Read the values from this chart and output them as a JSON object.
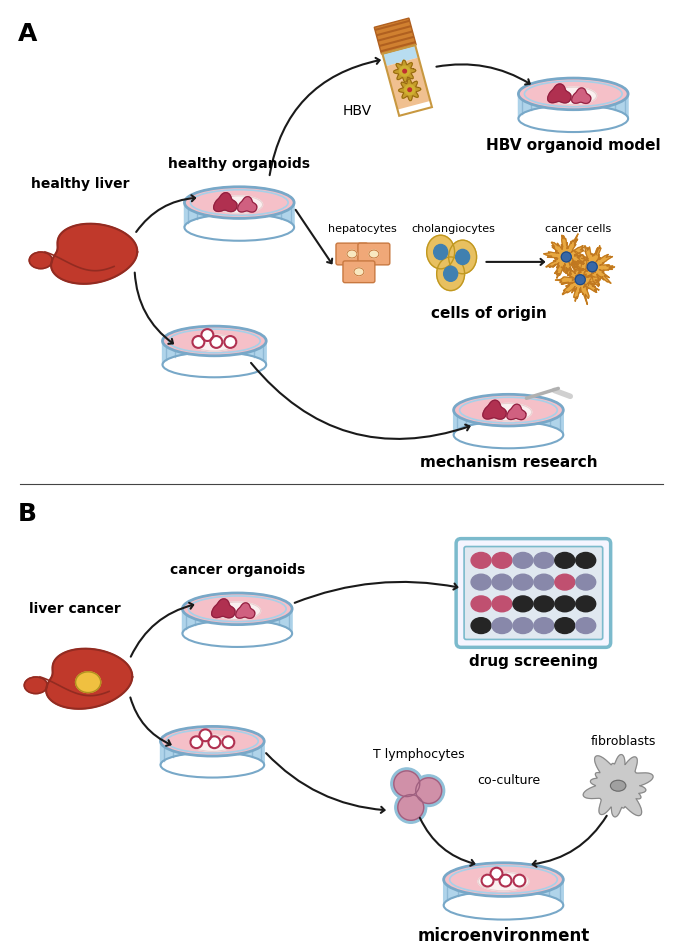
{
  "bg_color": "#ffffff",
  "label_A": "A",
  "label_B": "B",
  "text_healthy_liver": "healthy liver",
  "text_liver_cancer": "liver cancer",
  "text_healthy_organoids": "healthy organoids",
  "text_cancer_organoids": "cancer organoids",
  "text_HBV_model": "HBV organoid model",
  "text_cells_origin": "cells of origin",
  "text_mechanism": "mechanism research",
  "text_drug_screening": "drug screening",
  "text_microenvironment": "microenvironment",
  "text_HBV": "HBV",
  "text_hepatocytes": "hepatocytes",
  "text_cholangiocytes": "cholangiocytes",
  "text_cancer_cells": "cancer cells",
  "text_T_lymphocytes": "T lymphocytes",
  "text_fibroblasts": "fibroblasts",
  "text_co_culture": "co-culture",
  "liver_fill": "#C0392B",
  "liver_edge": "#922B21",
  "liver_lobe_fill": "#C0392B",
  "liver_tumor": "#F0C040",
  "dish_pink": "#F5C0C8",
  "dish_rim_blue": "#A8D0E8",
  "dish_rim_dark": "#78A8C8",
  "dish_inner_white": "#FAF0F0",
  "blob_dark": "#B03050",
  "blob_light": "#D06080",
  "blob_tiny": "#C84060",
  "cell_salmon": "#F0A878",
  "cell_outline": "#C87840",
  "chol_yellow": "#E8C060",
  "chol_edge": "#C09820",
  "chol_blue": "#4080B0",
  "cancer_orange": "#E8A840",
  "cancer_edge": "#C07820",
  "cancer_blue": "#3868A8",
  "lympho_pink": "#D090A8",
  "lympho_edge": "#A06080",
  "lympho_blue": "#90C0D8",
  "fibro_gray": "#B0B0B0",
  "fibro_edge": "#808080",
  "fibro_nuc": "#909090",
  "tube_body": "#E8C080",
  "tube_rim": "#C89840",
  "tube_cap_fill": "#D08030",
  "tube_cap_stripe": "#B06020",
  "tube_top": "#87CEEB",
  "virus_outer": "#C09820",
  "virus_inner": "#D0B030",
  "plate_bg": "#F5F5FF",
  "plate_border": "#7BBACC",
  "plate_inner": "#E0E8F0",
  "plate_pink": "#C05070",
  "plate_purple": "#8888AA",
  "plate_black": "#252525",
  "arrow_color": "#1a1a1a"
}
